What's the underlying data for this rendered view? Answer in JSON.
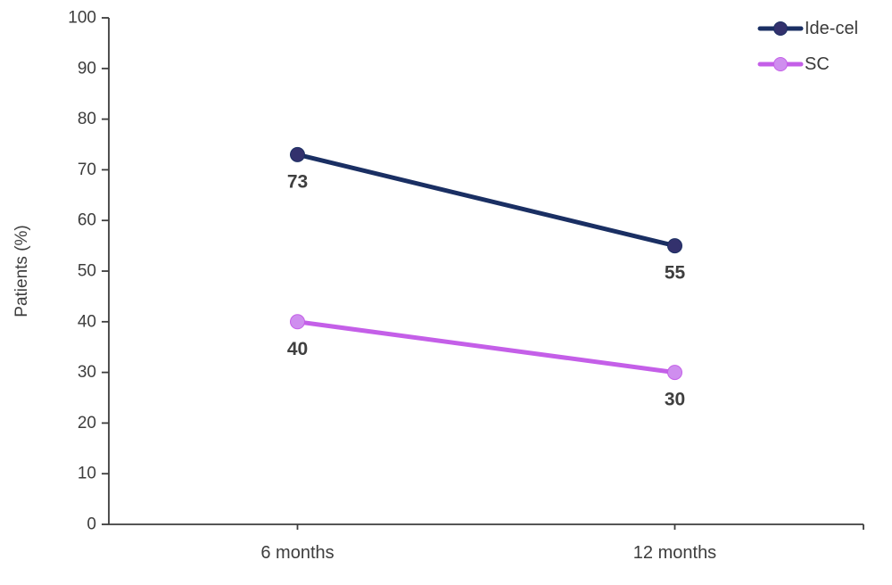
{
  "chart_data": {
    "type": "line",
    "title": "",
    "xlabel": "",
    "ylabel": "Patients (%)",
    "categories": [
      "6 months",
      "12 months"
    ],
    "series": [
      {
        "name": "Ide-cel",
        "values": [
          73,
          55
        ],
        "line_color": "#1a2f63",
        "marker_color": "#33316d"
      },
      {
        "name": "SC",
        "values": [
          40,
          30
        ],
        "line_color": "#c45fe8",
        "marker_color": "#cf8eef"
      }
    ],
    "data_labels_shown": true,
    "ylim": [
      0,
      100
    ],
    "ytick_step": 10,
    "grid": false,
    "legend_position": "top-right",
    "axis_color": "#3d3d3d",
    "tick_label_color": "#3d3d3d",
    "data_label_color": "#3f3f3f"
  }
}
